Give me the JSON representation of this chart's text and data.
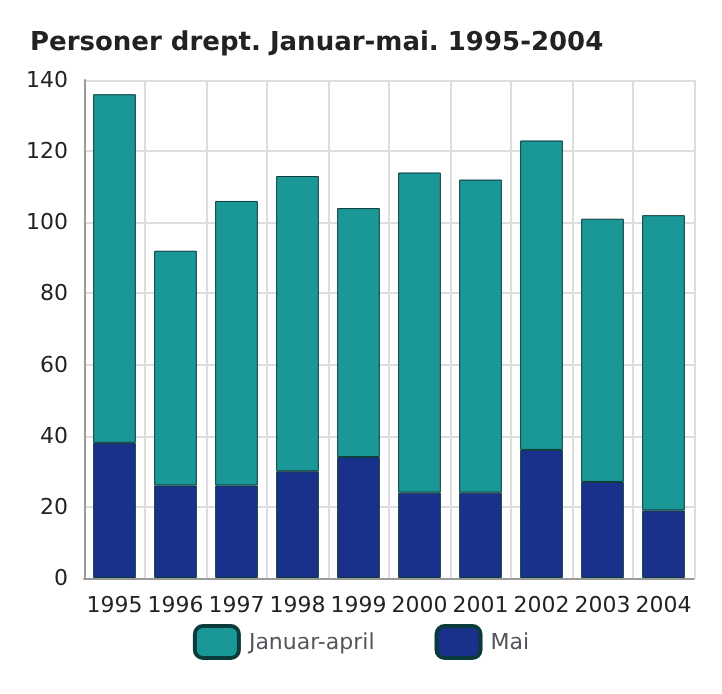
{
  "chart_data": {
    "type": "bar",
    "title": "Personer drept. Januar-mai. 1995-2004",
    "categories": [
      "1995",
      "1996",
      "1997",
      "1998",
      "1999",
      "2000",
      "2001",
      "2002",
      "2003",
      "2004"
    ],
    "series": [
      {
        "name": "Mai",
        "color": "#1a318c",
        "values": [
          38,
          26,
          26,
          30,
          34,
          24,
          24,
          36,
          27,
          19
        ]
      },
      {
        "name": "Januar-april",
        "color": "#1a9898",
        "values": [
          98,
          66,
          80,
          83,
          70,
          90,
          88,
          87,
          74,
          83
        ]
      }
    ],
    "stacked": true,
    "ylim": [
      0,
      140
    ],
    "yticks": [
      0,
      20,
      40,
      60,
      80,
      100,
      120,
      140
    ],
    "grid": true,
    "legend": "bottom"
  }
}
